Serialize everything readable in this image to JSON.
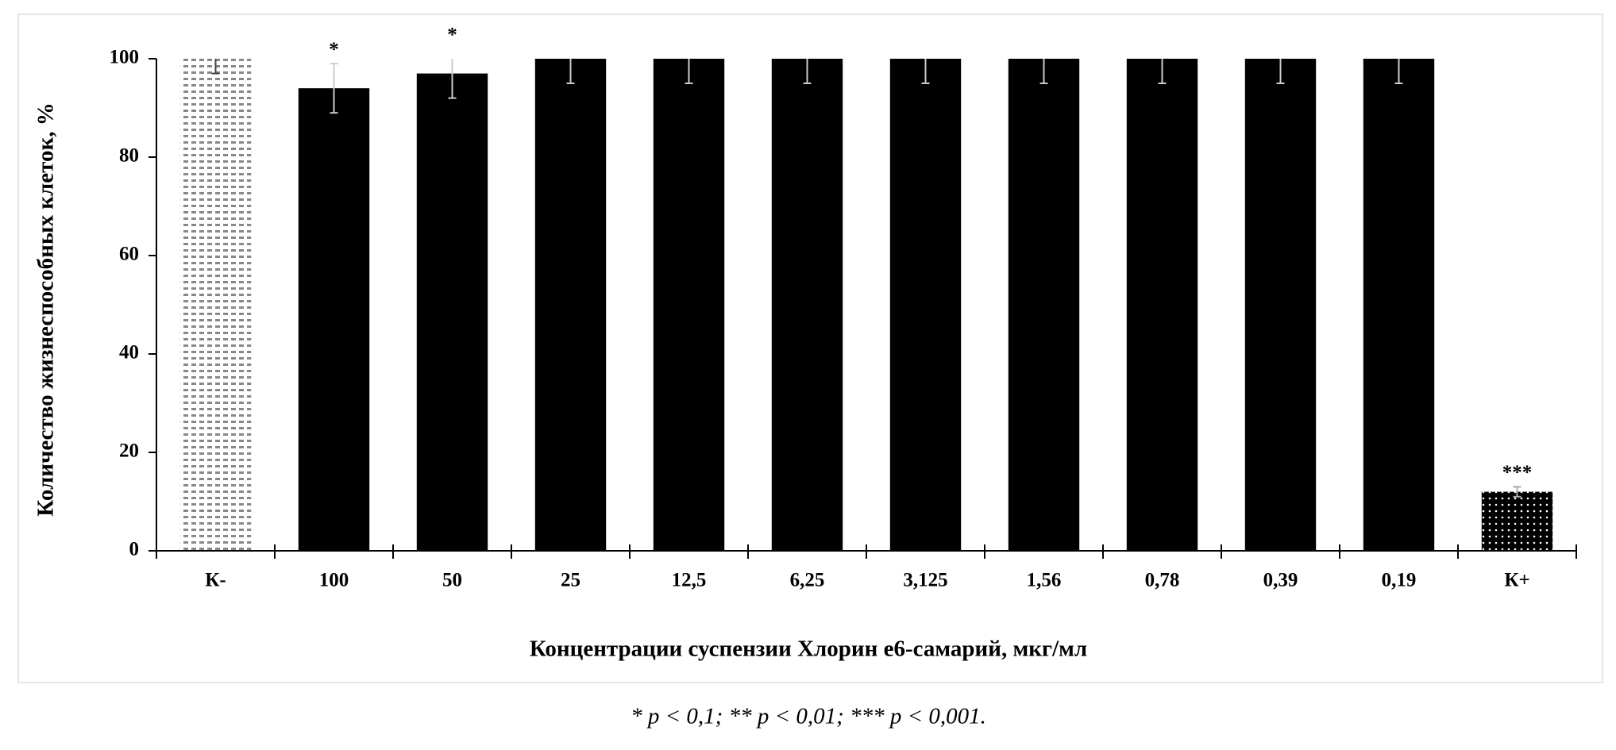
{
  "chart_data": {
    "type": "bar",
    "ylabel": "Количество жизнеспособных клеток, %",
    "xlabel": "Концентрации суспензии Хлорин е6-самарий, мкг/мл",
    "categories": [
      "К-",
      "100",
      "50",
      "25",
      "12,5",
      "6,25",
      "3,125",
      "1,56",
      "0,78",
      "0,39",
      "0,19",
      "К+"
    ],
    "values": [
      100,
      94,
      97,
      100,
      100,
      100,
      100,
      100,
      100,
      100,
      100,
      12
    ],
    "errors": [
      3,
      5,
      5,
      5,
      5,
      5,
      5,
      5,
      5,
      5,
      5,
      1
    ],
    "significance": [
      null,
      "*",
      "*",
      null,
      null,
      null,
      null,
      null,
      null,
      null,
      null,
      "***"
    ],
    "fills": [
      "pattern-light",
      "#000000",
      "#000000",
      "#000000",
      "#000000",
      "#000000",
      "#000000",
      "#000000",
      "#000000",
      "#000000",
      "#000000",
      "pattern-dark"
    ],
    "ylim": [
      0,
      100
    ],
    "yticks": [
      0,
      20,
      40,
      60,
      80,
      100
    ]
  },
  "footnote": "* p < 0,1; ** p < 0,01; *** p < 0,001."
}
